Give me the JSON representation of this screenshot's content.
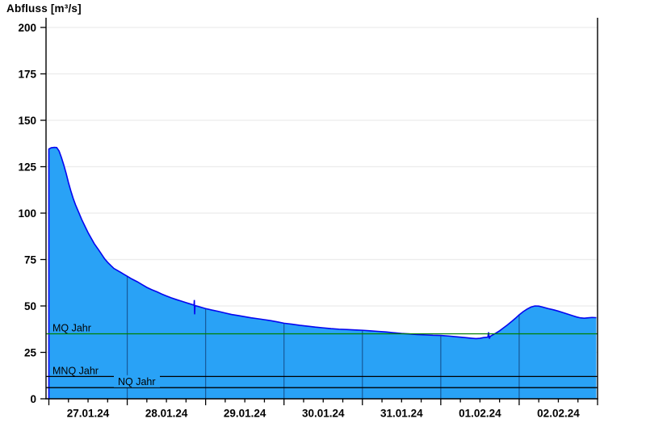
{
  "chart_data": {
    "type": "area",
    "title": "Abfluss [m³/s]",
    "ylabel": "Abfluss [m³/s]",
    "ylim": [
      0,
      200
    ],
    "ytick_step": 25,
    "ytick_labels": [
      "0",
      "25",
      "50",
      "75",
      "100",
      "125",
      "150",
      "175",
      "200"
    ],
    "x_day_labels": [
      "27.01.24",
      "28.01.24",
      "29.01.24",
      "30.01.24",
      "31.01.24",
      "01.02.24",
      "02.02.24"
    ],
    "x_minor_tick_hours": 6,
    "grid": "horizontal-light",
    "legend_position": "none",
    "series": [
      {
        "name": "Abfluss",
        "unit": "m³/s",
        "points": [
          [
            0,
            134.5
          ],
          [
            0.03,
            135.2
          ],
          [
            0.07,
            135.4
          ],
          [
            0.1,
            135.3
          ],
          [
            0.13,
            133.5
          ],
          [
            0.16,
            130
          ],
          [
            0.19,
            126
          ],
          [
            0.22,
            121.5
          ],
          [
            0.25,
            116.5
          ],
          [
            0.28,
            112
          ],
          [
            0.31,
            108
          ],
          [
            0.34,
            104.5
          ],
          [
            0.38,
            100.5
          ],
          [
            0.42,
            96.5
          ],
          [
            0.46,
            93
          ],
          [
            0.5,
            89.5
          ],
          [
            0.54,
            86.5
          ],
          [
            0.58,
            83.5
          ],
          [
            0.63,
            80.5
          ],
          [
            0.67,
            78
          ],
          [
            0.71,
            75.5
          ],
          [
            0.75,
            73.5
          ],
          [
            0.79,
            71.8
          ],
          [
            0.83,
            70.2
          ],
          [
            0.88,
            69
          ],
          [
            0.92,
            68
          ],
          [
            0.96,
            67
          ],
          [
            1,
            66
          ],
          [
            1.06,
            64.5
          ],
          [
            1.13,
            63
          ],
          [
            1.19,
            61.5
          ],
          [
            1.25,
            60
          ],
          [
            1.31,
            58.8
          ],
          [
            1.38,
            57.6
          ],
          [
            1.44,
            56.4
          ],
          [
            1.5,
            55.4
          ],
          [
            1.56,
            54.4
          ],
          [
            1.63,
            53.4
          ],
          [
            1.69,
            52.6
          ],
          [
            1.75,
            51.8
          ],
          [
            1.81,
            51
          ],
          [
            1.84,
            50.6
          ],
          [
            1.852,
            50.4
          ],
          [
            1.856,
            53.2
          ],
          [
            1.86,
            45.5
          ],
          [
            1.864,
            50.2
          ],
          [
            1.9,
            49.8
          ],
          [
            1.95,
            49.2
          ],
          [
            2,
            48.6
          ],
          [
            2.08,
            47.8
          ],
          [
            2.17,
            47
          ],
          [
            2.25,
            46.2
          ],
          [
            2.33,
            45.4
          ],
          [
            2.42,
            44.8
          ],
          [
            2.5,
            44.2
          ],
          [
            2.58,
            43.6
          ],
          [
            2.67,
            43.1
          ],
          [
            2.75,
            42.6
          ],
          [
            2.83,
            42.1
          ],
          [
            2.92,
            41.4
          ],
          [
            3,
            40.7
          ],
          [
            3.1,
            40.2
          ],
          [
            3.2,
            39.6
          ],
          [
            3.3,
            39.1
          ],
          [
            3.4,
            38.6
          ],
          [
            3.5,
            38.2
          ],
          [
            3.6,
            37.8
          ],
          [
            3.7,
            37.5
          ],
          [
            3.8,
            37.3
          ],
          [
            3.9,
            37.1
          ],
          [
            4,
            36.9
          ],
          [
            4.1,
            36.6
          ],
          [
            4.2,
            36.3
          ],
          [
            4.3,
            36
          ],
          [
            4.4,
            35.6
          ],
          [
            4.5,
            35.2
          ],
          [
            4.6,
            34.9
          ],
          [
            4.7,
            34.6
          ],
          [
            4.8,
            34.4
          ],
          [
            4.9,
            34.2
          ],
          [
            5,
            34.1
          ],
          [
            5.1,
            33.8
          ],
          [
            5.2,
            33.4
          ],
          [
            5.3,
            33
          ],
          [
            5.4,
            32.6
          ],
          [
            5.45,
            32.4
          ],
          [
            5.5,
            32.6
          ],
          [
            5.55,
            33
          ],
          [
            5.6,
            33.2
          ],
          [
            5.61,
            35.8
          ],
          [
            5.62,
            32.4
          ],
          [
            5.63,
            33.6
          ],
          [
            5.7,
            35.3
          ],
          [
            5.75,
            36.6
          ],
          [
            5.8,
            38.2
          ],
          [
            5.85,
            39.8
          ],
          [
            5.9,
            41.5
          ],
          [
            5.95,
            43.3
          ],
          [
            6,
            45.2
          ],
          [
            6.05,
            46.9
          ],
          [
            6.1,
            48.3
          ],
          [
            6.15,
            49.4
          ],
          [
            6.2,
            50
          ],
          [
            6.25,
            49.9
          ],
          [
            6.3,
            49.4
          ],
          [
            6.37,
            48.6
          ],
          [
            6.44,
            47.9
          ],
          [
            6.5,
            47.2
          ],
          [
            6.56,
            46.4
          ],
          [
            6.62,
            45.6
          ],
          [
            6.68,
            44.8
          ],
          [
            6.73,
            44.1
          ],
          [
            6.78,
            43.6
          ],
          [
            6.83,
            43.4
          ],
          [
            6.88,
            43.6
          ],
          [
            6.93,
            43.8
          ],
          [
            6.985,
            43.7
          ]
        ]
      }
    ],
    "reference_lines": [
      {
        "id": "mq",
        "label": "MQ Jahr",
        "value": 35,
        "color": "#008000",
        "label_x": 65,
        "label_bg": false
      },
      {
        "id": "mnq",
        "label": "MNQ Jahr",
        "value": 12,
        "color": "#000000",
        "label_x": 65,
        "label_bg": false
      },
      {
        "id": "nq",
        "label": "NQ Jahr",
        "value": 6,
        "color": "#000000",
        "label_x": 146,
        "label_bg": true
      }
    ],
    "colors": {
      "area_fill": "#29A2F6",
      "area_stroke": "#0505F0",
      "day_boundary_line": "rgba(0,0,40,0.45)",
      "grid_line": "#ECECEC",
      "axis": "#000000"
    }
  }
}
